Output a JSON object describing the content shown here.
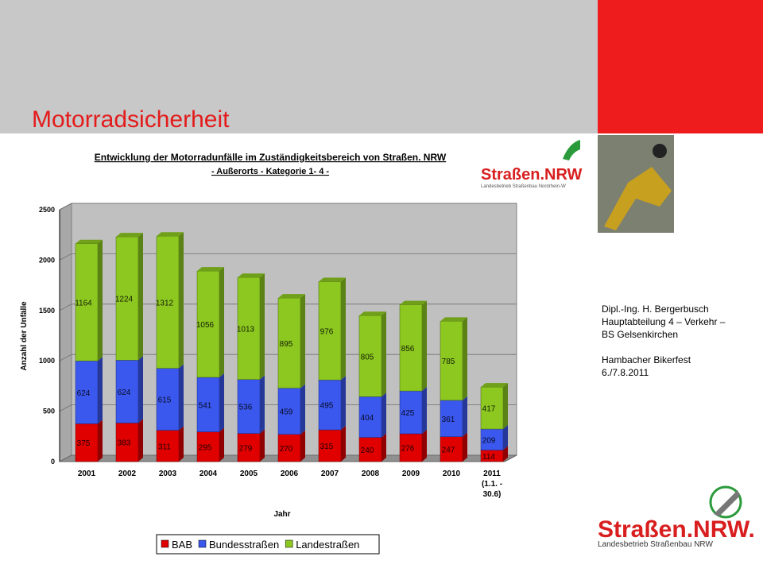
{
  "slide_title": "Motorradsicherheit",
  "author_lines": [
    "Dipl.-Ing. H. Bergerbusch",
    "Hauptabteilung 4 – Verkehr –",
    "BS Gelsenkirchen"
  ],
  "event_lines": [
    "Hambacher Bikerfest",
    "6./7.8.2011"
  ],
  "logo_top": "Straßen.NRW",
  "logo_top_sub": "Landesbetrieb Straßenbau Nordrhein-W",
  "logo_bottom": "Straßen.NRW.",
  "logo_bottom_sub": "Landesbetrieb Straßenbau NRW",
  "chart_data": {
    "type": "stacked_bar_3d",
    "title": "Entwicklung der Motorradunfälle im Zuständigkeitsbereich von Straßen. NRW",
    "subtitle": "- Außerorts - Kategorie 1- 4 -",
    "x_label": "Jahr",
    "y_label": "Anzahl der Unfälle",
    "annotation": "?",
    "categories": [
      "2001",
      "2002",
      "2003",
      "2004",
      "2005",
      "2006",
      "2007",
      "2008",
      "2009",
      "2010",
      "2011\n(1.1. -\n30.6)"
    ],
    "series": [
      {
        "name": "BAB",
        "color": "#e00000",
        "values": [
          375,
          383,
          311,
          295,
          279,
          270,
          315,
          240,
          276,
          247,
          114
        ]
      },
      {
        "name": "Bundesstraßen",
        "color": "#3a57ee",
        "values": [
          624,
          624,
          615,
          541,
          536,
          459,
          495,
          404,
          425,
          361,
          209
        ]
      },
      {
        "name": "Landestraßen",
        "color": "#8cc820",
        "values": [
          1164,
          1224,
          1312,
          1056,
          1013,
          895,
          976,
          805,
          856,
          785,
          417
        ]
      }
    ],
    "ylim": [
      0,
      2500
    ],
    "yticks": [
      0,
      500,
      1000,
      1500,
      2000,
      2500
    ],
    "grid": true,
    "legend": "bottom"
  }
}
